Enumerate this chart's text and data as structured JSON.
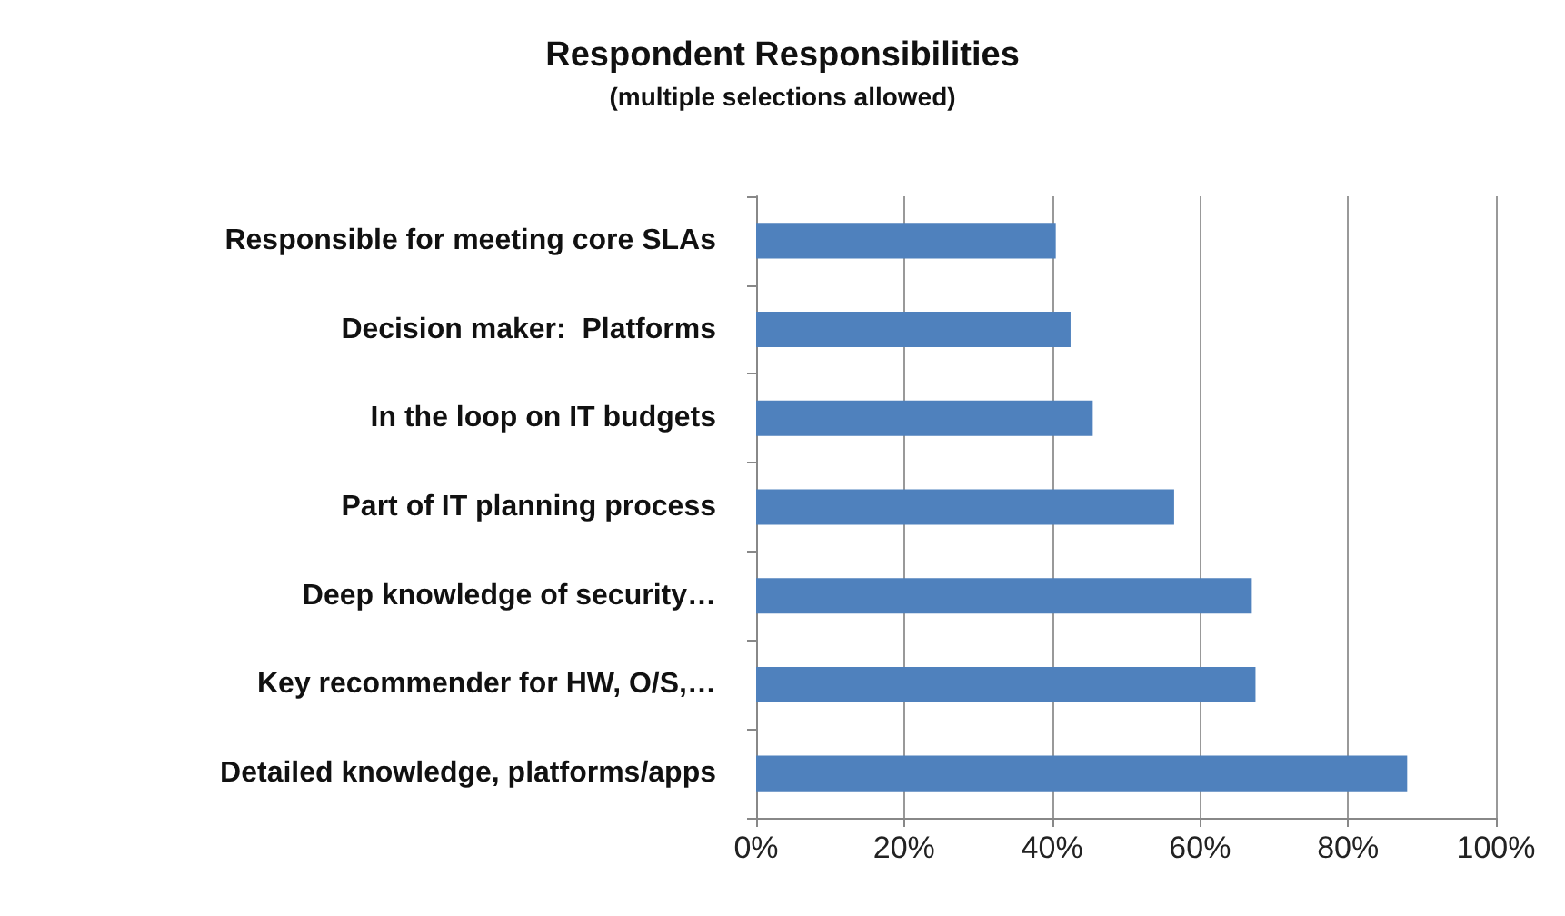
{
  "chart_data": {
    "type": "bar",
    "orientation": "horizontal",
    "title": "Respondent Responsibilities",
    "subtitle": "(multiple selections allowed)",
    "categories": [
      "Responsible for meeting core SLAs",
      "Decision maker:  Platforms",
      "In the loop on IT budgets",
      "Part of IT planning process",
      "Deep knowledge of security…",
      "Key recommender for HW, O/S,…",
      "Detailed knowledge, platforms/apps"
    ],
    "values": [
      40.5,
      42.5,
      45.5,
      56.5,
      67,
      67.5,
      88
    ],
    "color": "#4f81bd",
    "xlim": [
      0,
      100
    ],
    "xticks": [
      {
        "value": 0,
        "label": "0%"
      },
      {
        "value": 20,
        "label": "20%"
      },
      {
        "value": 40,
        "label": "40%"
      },
      {
        "value": 60,
        "label": "60%"
      },
      {
        "value": 80,
        "label": "80%"
      },
      {
        "value": 100,
        "label": "100%"
      }
    ],
    "grid": "x"
  }
}
